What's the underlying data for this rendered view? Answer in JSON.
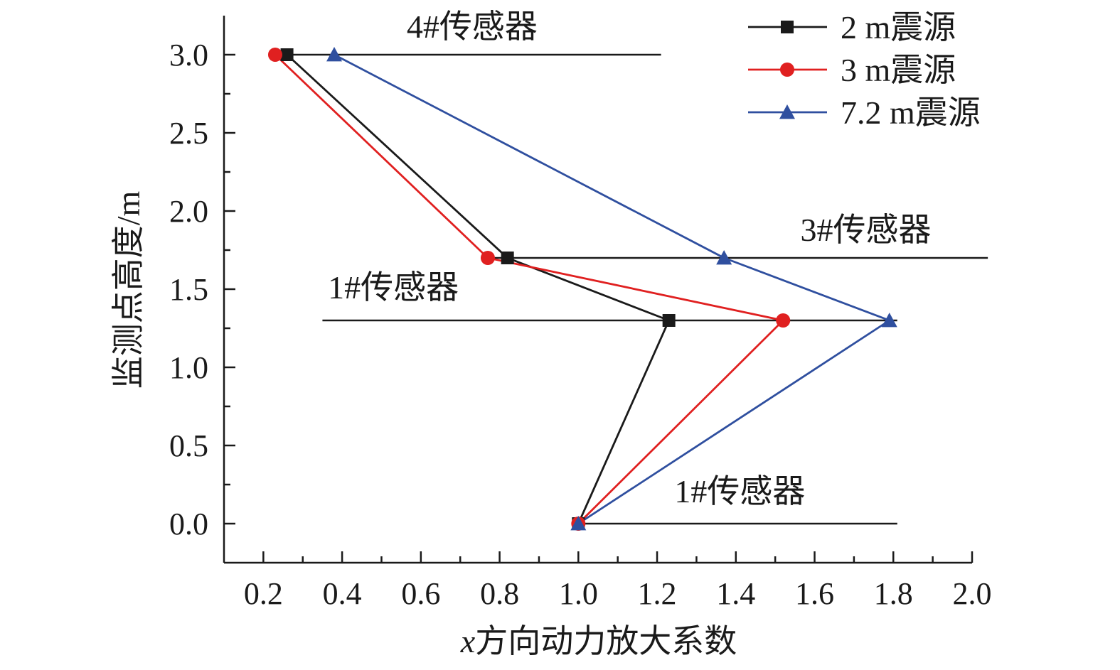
{
  "chart_data": {
    "type": "line",
    "xlabel_var": "x",
    "xlabel_rest": "方向动力放大系数",
    "ylabel": "监测点高度/m",
    "xlim": [
      0.1,
      2.0
    ],
    "ylim": [
      -0.25,
      3.25
    ],
    "xticks": [
      "0.2",
      "0.4",
      "0.6",
      "0.8",
      "1.0",
      "1.2",
      "1.4",
      "1.6",
      "1.8",
      "2.0"
    ],
    "yticks": [
      "0.0",
      "0.5",
      "1.0",
      "1.5",
      "2.0",
      "2.5",
      "3.0"
    ],
    "legend_position": "top-right",
    "series": [
      {
        "name": "2 m震源",
        "color": "#1a1a1a",
        "marker": "square",
        "points": [
          [
            0.26,
            3.0
          ],
          [
            0.82,
            1.7
          ],
          [
            1.23,
            1.3
          ],
          [
            1.0,
            0.0
          ]
        ]
      },
      {
        "name": "3 m震源",
        "color": "#e02020",
        "marker": "circle",
        "points": [
          [
            0.23,
            3.0
          ],
          [
            0.77,
            1.7
          ],
          [
            1.52,
            1.3
          ],
          [
            1.0,
            0.0
          ]
        ]
      },
      {
        "name": "7.2 m震源",
        "color": "#2f4f9f",
        "marker": "triangle",
        "points": [
          [
            0.38,
            3.0
          ],
          [
            1.37,
            1.7
          ],
          [
            1.79,
            1.3
          ],
          [
            1.0,
            0.0
          ]
        ]
      }
    ],
    "sensor_lines": [
      {
        "label": "4#传感器",
        "y": 3.0,
        "x_from": 0.23,
        "x_to": 1.21
      },
      {
        "label": "3#传感器",
        "y": 1.7,
        "x_from": 0.77,
        "x_to": 2.04
      },
      {
        "label": "1#传感器",
        "y": 1.3,
        "x_from": 0.35,
        "x_to": 1.81
      },
      {
        "label": "1#传感器",
        "y": 0.0,
        "x_from": 1.0,
        "x_to": 1.81
      }
    ]
  }
}
